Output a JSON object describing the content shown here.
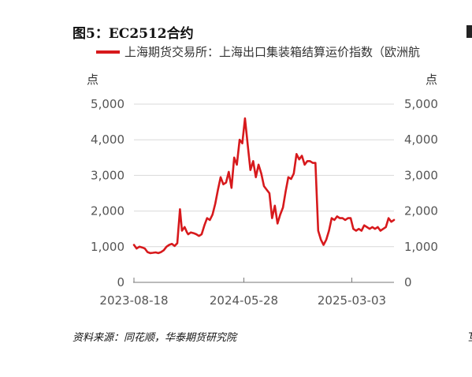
{
  "figure": {
    "title": "图5：EC2512合约",
    "source": "资料来源：同花顺，华泰期货研究院"
  },
  "legend": {
    "label": "上海期货交易所：上海出口集装箱结算运价指数（欧洲航",
    "color": "#d7191c"
  },
  "chart_data": {
    "type": "line",
    "title": "",
    "y_unit_left": "点",
    "y_unit_right": "点",
    "ylim": [
      0,
      5000
    ],
    "y_ticks": [
      "0",
      "1,000",
      "2,000",
      "3,000",
      "4,000",
      "5,000"
    ],
    "y_tick_values": [
      0,
      1000,
      2000,
      3000,
      4000,
      5000
    ],
    "x_ticks": [
      "2023-08-18",
      "2024-05-28",
      "2025-03-03"
    ],
    "grid": true,
    "legend_position": "top",
    "series": [
      {
        "name": "上海期货交易所：上海出口集装箱结算运价指数（欧洲航",
        "color": "#d7191c",
        "x": [
          "2023-08-18",
          "2023-08-25",
          "2023-09-01",
          "2023-09-08",
          "2023-09-15",
          "2023-09-22",
          "2023-09-29",
          "2023-10-06",
          "2023-10-13",
          "2023-10-20",
          "2023-10-27",
          "2023-11-03",
          "2023-11-10",
          "2023-11-17",
          "2023-11-24",
          "2023-12-01",
          "2023-12-08",
          "2023-12-15",
          "2023-12-20",
          "2023-12-27",
          "2024-01-02",
          "2024-01-05",
          "2024-01-12",
          "2024-01-19",
          "2024-01-26",
          "2024-02-02",
          "2024-02-09",
          "2024-02-16",
          "2024-02-23",
          "2024-03-01",
          "2024-03-08",
          "2024-03-15",
          "2024-03-22",
          "2024-03-29",
          "2024-04-05",
          "2024-04-12",
          "2024-04-19",
          "2024-04-26",
          "2024-05-03",
          "2024-05-10",
          "2024-05-17",
          "2024-05-24",
          "2024-05-31",
          "2024-06-07",
          "2024-06-14",
          "2024-06-21",
          "2024-06-28",
          "2024-07-05",
          "2024-07-12",
          "2024-07-19",
          "2024-07-26",
          "2024-08-02",
          "2024-08-09",
          "2024-08-16",
          "2024-08-23",
          "2024-08-30",
          "2024-09-06",
          "2024-09-13",
          "2024-09-20",
          "2024-09-27",
          "2024-10-04",
          "2024-10-11",
          "2024-10-18",
          "2024-10-25",
          "2024-11-01",
          "2024-11-08",
          "2024-11-15",
          "2024-11-22",
          "2024-11-29",
          "2024-12-06",
          "2024-12-13",
          "2024-12-20",
          "2024-12-27",
          "2025-01-03",
          "2025-01-10",
          "2025-01-17",
          "2025-01-24",
          "2025-01-31",
          "2025-02-07",
          "2025-02-14",
          "2025-02-21",
          "2025-02-28",
          "2025-03-07",
          "2025-03-14",
          "2025-03-21",
          "2025-03-28",
          "2025-04-04",
          "2025-04-11",
          "2025-04-18",
          "2025-04-25",
          "2025-05-02",
          "2025-05-09",
          "2025-05-16",
          "2025-05-23",
          "2025-05-30",
          "2025-06-06",
          "2025-06-13",
          "2025-06-20"
        ],
        "values": [
          1050,
          950,
          1000,
          980,
          950,
          850,
          820,
          830,
          840,
          820,
          850,
          900,
          1000,
          1050,
          1080,
          1020,
          1100,
          2050,
          1450,
          1550,
          1400,
          1350,
          1400,
          1380,
          1350,
          1300,
          1350,
          1600,
          1800,
          1750,
          1900,
          2200,
          2600,
          2950,
          2750,
          2800,
          3100,
          2650,
          3500,
          3300,
          4000,
          3900,
          4600,
          3850,
          3150,
          3400,
          2950,
          3300,
          3050,
          2700,
          2600,
          2500,
          1800,
          2150,
          1650,
          1900,
          2100,
          2550,
          2950,
          2900,
          3050,
          3600,
          3450,
          3550,
          3300,
          3400,
          3400,
          3350,
          3350,
          1450,
          1200,
          1050,
          1200,
          1450,
          1800,
          1750,
          1850,
          1800,
          1800,
          1750,
          1800,
          1800,
          1500,
          1450,
          1500,
          1450,
          1600,
          1550,
          1500,
          1550,
          1500,
          1550,
          1450,
          1500,
          1550,
          1800,
          1700,
          1750
        ]
      }
    ]
  }
}
